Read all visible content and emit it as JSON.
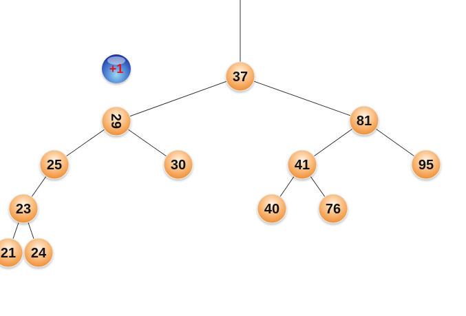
{
  "tree": {
    "nodes": [
      {
        "id": "n37",
        "label": "37"
      },
      {
        "id": "n29",
        "label": "29",
        "rotated": true
      },
      {
        "id": "n81",
        "label": "81"
      },
      {
        "id": "n25",
        "label": "25"
      },
      {
        "id": "n30",
        "label": "30"
      },
      {
        "id": "n41",
        "label": "41"
      },
      {
        "id": "n95",
        "label": "95"
      },
      {
        "id": "n23",
        "label": "23"
      },
      {
        "id": "n40",
        "label": "40"
      },
      {
        "id": "n76",
        "label": "76"
      },
      {
        "id": "n21",
        "label": "21"
      },
      {
        "id": "n24",
        "label": "24"
      }
    ],
    "edges": [
      {
        "from": "n37",
        "to": "n29"
      },
      {
        "from": "n37",
        "to": "n81"
      },
      {
        "from": "n29",
        "to": "n25"
      },
      {
        "from": "n29",
        "to": "n30"
      },
      {
        "from": "n81",
        "to": "n41"
      },
      {
        "from": "n81",
        "to": "n95"
      },
      {
        "from": "n25",
        "to": "n23"
      },
      {
        "from": "n41",
        "to": "n40"
      },
      {
        "from": "n41",
        "to": "n76"
      },
      {
        "from": "n23",
        "to": "n21"
      },
      {
        "from": "n23",
        "to": "n24"
      }
    ],
    "node_color": "#f7a04a",
    "edge_color": "#333333"
  },
  "badge": {
    "label": "+1",
    "color": "#2f4fc0",
    "text_color": "#e8141c"
  }
}
